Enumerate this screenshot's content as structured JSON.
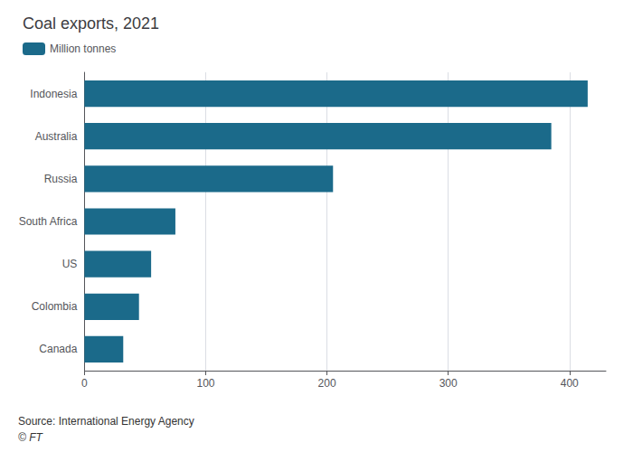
{
  "chart_data": {
    "type": "bar",
    "orientation": "horizontal",
    "title": "Coal exports, 2021",
    "categories": [
      "Canada",
      "Colombia",
      "US",
      "South Africa",
      "Russia",
      "Australia",
      "Indonesia"
    ],
    "series": [
      {
        "name": "Million tonnes",
        "color": "#1b6a8a",
        "values": [
          32,
          45,
          55,
          75,
          205,
          385,
          415
        ]
      }
    ],
    "xlim": [
      0,
      430
    ],
    "xticks": [
      0,
      100,
      200,
      300,
      400
    ],
    "grid": true,
    "legend": "upper left",
    "annotations": [
      "Source: International Energy Agency",
      "© FT"
    ]
  }
}
